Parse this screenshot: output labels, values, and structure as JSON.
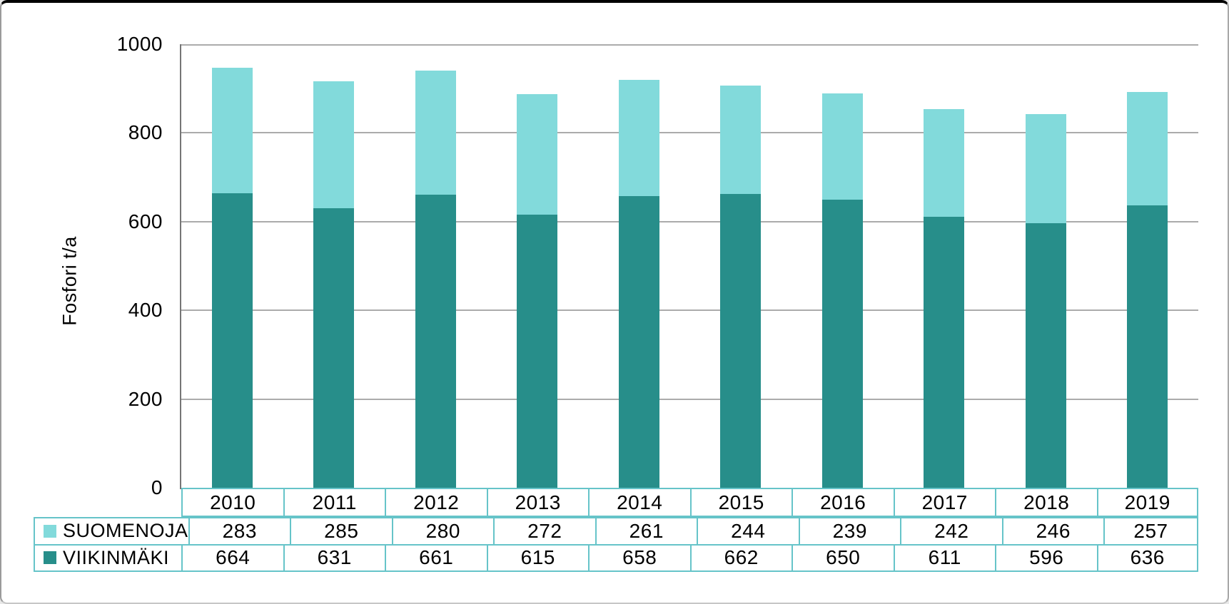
{
  "chart_data": {
    "type": "bar",
    "stacked": true,
    "title": "",
    "categories": [
      "2010",
      "2011",
      "2012",
      "2013",
      "2014",
      "2015",
      "2016",
      "2017",
      "2018",
      "2019"
    ],
    "series": [
      {
        "name": "SUOMENOJA",
        "color": "#82DADB",
        "values": [
          283,
          285,
          280,
          272,
          261,
          244,
          239,
          242,
          246,
          257
        ]
      },
      {
        "name": "VIIKINMÄKI",
        "color": "#278E8A",
        "values": [
          664,
          631,
          661,
          615,
          658,
          662,
          650,
          611,
          596,
          636
        ]
      }
    ],
    "stack_bottom_to_top": [
      "VIIKINMÄKI",
      "SUOMENOJA"
    ],
    "xlabel": "",
    "ylabel": "Fosfori t/a",
    "ylim": [
      0,
      1000
    ],
    "y_tick_step": 200,
    "y_ticks": [
      0,
      200,
      400,
      600,
      800,
      1000
    ],
    "grid": true,
    "legend_position": "data-table left column",
    "data_table_shown": true,
    "colors": {
      "gridline": "#ABABAB",
      "axis_line": "#757575",
      "table_border": "#66C4C9",
      "text": "#000000",
      "background": "#FFFFFF"
    }
  }
}
